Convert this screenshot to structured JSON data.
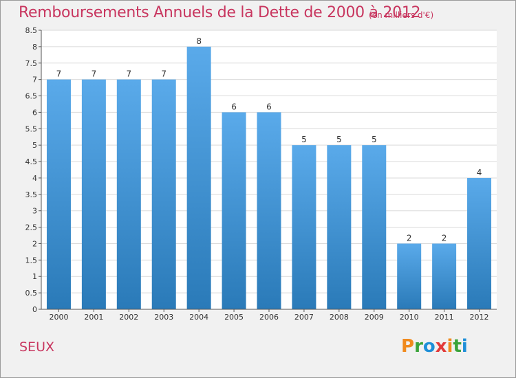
{
  "header": {
    "title": "Remboursements Annuels de la Dette de 2000 à 2012",
    "subtitle": "(en milliers d'€)"
  },
  "footer": {
    "commune": "SEUX",
    "logo": "Proxiti",
    "logo_letters": [
      {
        "ch": "P",
        "color": "#f08a1d"
      },
      {
        "ch": "r",
        "color": "#3aa43a"
      },
      {
        "ch": "o",
        "color": "#1e8fd8"
      },
      {
        "ch": "x",
        "color": "#e23a3a"
      },
      {
        "ch": "i",
        "color": "#f08a1d"
      },
      {
        "ch": "t",
        "color": "#3aa43a"
      },
      {
        "ch": "i",
        "color": "#1e8fd8"
      }
    ]
  },
  "colors": {
    "bar_top": "#5aaaea",
    "bar_bottom": "#2a7ab8",
    "title": "#c8365f",
    "grid": "#d9d9d9"
  },
  "chart_data": {
    "type": "bar",
    "categories": [
      "2000",
      "2001",
      "2002",
      "2003",
      "2004",
      "2005",
      "2006",
      "2007",
      "2008",
      "2009",
      "2010",
      "2011",
      "2012"
    ],
    "values": [
      7,
      7,
      7,
      7,
      8,
      6,
      6,
      5,
      5,
      5,
      2,
      2,
      4
    ],
    "data_labels": [
      "7",
      "7",
      "7",
      "7",
      "8",
      "6",
      "6",
      "5",
      "5",
      "5",
      "2",
      "2",
      "4"
    ],
    "y_ticks": [
      "0",
      "0.5",
      "1",
      "1.5",
      "2",
      "2.5",
      "3",
      "3.5",
      "4",
      "4.5",
      "5",
      "5.5",
      "6",
      "6.5",
      "7",
      "7.5",
      "8",
      "8.5"
    ],
    "ylim": [
      0,
      8.5
    ],
    "grid": true
  }
}
